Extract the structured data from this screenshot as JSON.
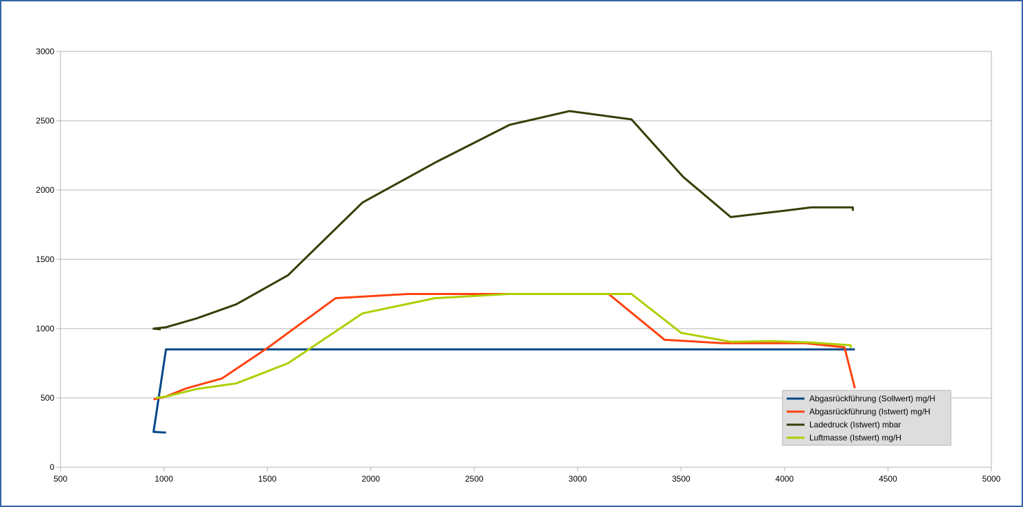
{
  "chart_data": {
    "type": "line",
    "title": "",
    "xlabel": "",
    "ylabel": "",
    "xlim": [
      500,
      5000
    ],
    "ylim": [
      0,
      3000
    ],
    "x_ticks": [
      500,
      1000,
      1500,
      2000,
      2500,
      3000,
      3500,
      4000,
      4500,
      5000
    ],
    "y_ticks": [
      0,
      500,
      1000,
      1500,
      2000,
      2500,
      3000
    ],
    "grid": "horizontal",
    "legend_position": "bottom-right",
    "series": [
      {
        "name": "Abgasrückführung (Sollwert)  mg/H",
        "color": "#004586",
        "points": [
          [
            1010,
            250
          ],
          [
            950,
            255
          ],
          [
            1010,
            850
          ],
          [
            1500,
            850
          ],
          [
            2000,
            850
          ],
          [
            2500,
            850
          ],
          [
            3000,
            850
          ],
          [
            3500,
            850
          ],
          [
            4000,
            850
          ],
          [
            4340,
            850
          ]
        ]
      },
      {
        "name": "Abgasrückführung (Istwert)  mg/H",
        "color": "#ff420e",
        "points": [
          [
            950,
            490
          ],
          [
            1000,
            505
          ],
          [
            1110,
            570
          ],
          [
            1280,
            640
          ],
          [
            1500,
            860
          ],
          [
            1830,
            1220
          ],
          [
            2180,
            1250
          ],
          [
            2700,
            1250
          ],
          [
            3150,
            1250
          ],
          [
            3420,
            920
          ],
          [
            3700,
            895
          ],
          [
            4100,
            895
          ],
          [
            4290,
            865
          ],
          [
            4340,
            570
          ]
        ]
      },
      {
        "name": "Ladedruck (Istwert)  mbar",
        "color": "#314004",
        "points": [
          [
            985,
            995
          ],
          [
            950,
            1000
          ],
          [
            1010,
            1010
          ],
          [
            1160,
            1075
          ],
          [
            1350,
            1175
          ],
          [
            1600,
            1385
          ],
          [
            1960,
            1910
          ],
          [
            2320,
            2205
          ],
          [
            2670,
            2470
          ],
          [
            2960,
            2570
          ],
          [
            3260,
            2510
          ],
          [
            3510,
            2095
          ],
          [
            3740,
            1805
          ],
          [
            3940,
            1840
          ],
          [
            4130,
            1875
          ],
          [
            4330,
            1875
          ],
          [
            4330,
            1850
          ]
        ]
      },
      {
        "name": "Luftmasse (Istwert)  mg/H",
        "color": "#aecf00",
        "points": [
          [
            960,
            500
          ],
          [
            1010,
            510
          ],
          [
            1160,
            565
          ],
          [
            1350,
            605
          ],
          [
            1600,
            750
          ],
          [
            1960,
            1110
          ],
          [
            2310,
            1220
          ],
          [
            2670,
            1250
          ],
          [
            3260,
            1250
          ],
          [
            3500,
            970
          ],
          [
            3740,
            905
          ],
          [
            3940,
            910
          ],
          [
            4130,
            900
          ],
          [
            4320,
            880
          ],
          [
            4320,
            860
          ]
        ]
      }
    ]
  }
}
